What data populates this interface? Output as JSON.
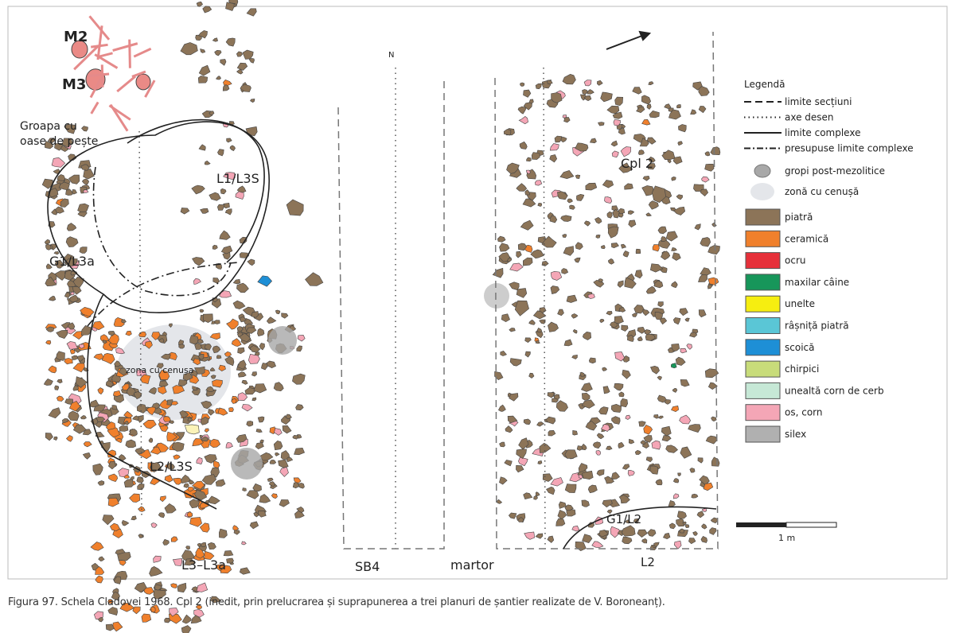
{
  "figure": {
    "labels": {
      "m2": "M2",
      "m3": "M3",
      "groapa_line1": "Groapa cu",
      "groapa_line2": "oase de pește",
      "l1_l3s": "L1/L3S",
      "g1_l3a": "G1/L3a",
      "zona_cenusa": "zona cu cenușa",
      "l2_l3s": "L2/L3S",
      "l3_l3a": "L3–L3a",
      "sb4": "SB4",
      "martor": "martor",
      "cpl2": "Cpl 2",
      "g1_l2": "G1/L2",
      "l2": "L2",
      "north": "N",
      "scale": "1 m"
    },
    "legend": {
      "title": "Legendă",
      "lines": [
        {
          "style": "dashed",
          "label": "limite secțiuni"
        },
        {
          "style": "dotted",
          "label": "axe desen"
        },
        {
          "style": "solid",
          "label": "limite complexe"
        },
        {
          "style": "dashdot",
          "label": "presupuse limite complexe"
        }
      ],
      "shapes": [
        {
          "shape": "pit",
          "label": "gropi post-mezolitice",
          "color": "#a8a8a8"
        },
        {
          "shape": "ash",
          "label": "zonă cu cenușă",
          "color": "#e4e6ea"
        }
      ],
      "swatches": [
        {
          "label": "piatră",
          "color": "#8c7458"
        },
        {
          "label": "ceramică",
          "color": "#f0802c"
        },
        {
          "label": "ocru",
          "color": "#e6303a"
        },
        {
          "label": "maxilar câine",
          "color": "#17965a"
        },
        {
          "label": "unelte",
          "color": "#f6ee10"
        },
        {
          "label": "râșniță piatră",
          "color": "#5ac6d6"
        },
        {
          "label": "scoică",
          "color": "#1e8fd6"
        },
        {
          "label": "chirpici",
          "color": "#c8dc7a"
        },
        {
          "label": "unealtă corn de cerb",
          "color": "#c6e8d6"
        },
        {
          "label": "os, corn",
          "color": "#f4a6b6"
        },
        {
          "label": "silex",
          "color": "#b0b0b0"
        }
      ]
    }
  },
  "caption": "Figura 97. Schela Cladovei 1968. Cpl 2 (inedit, prin prelucrarea și suprapunerea a trei planuri de șantier realizate de V. Boroneanț)."
}
